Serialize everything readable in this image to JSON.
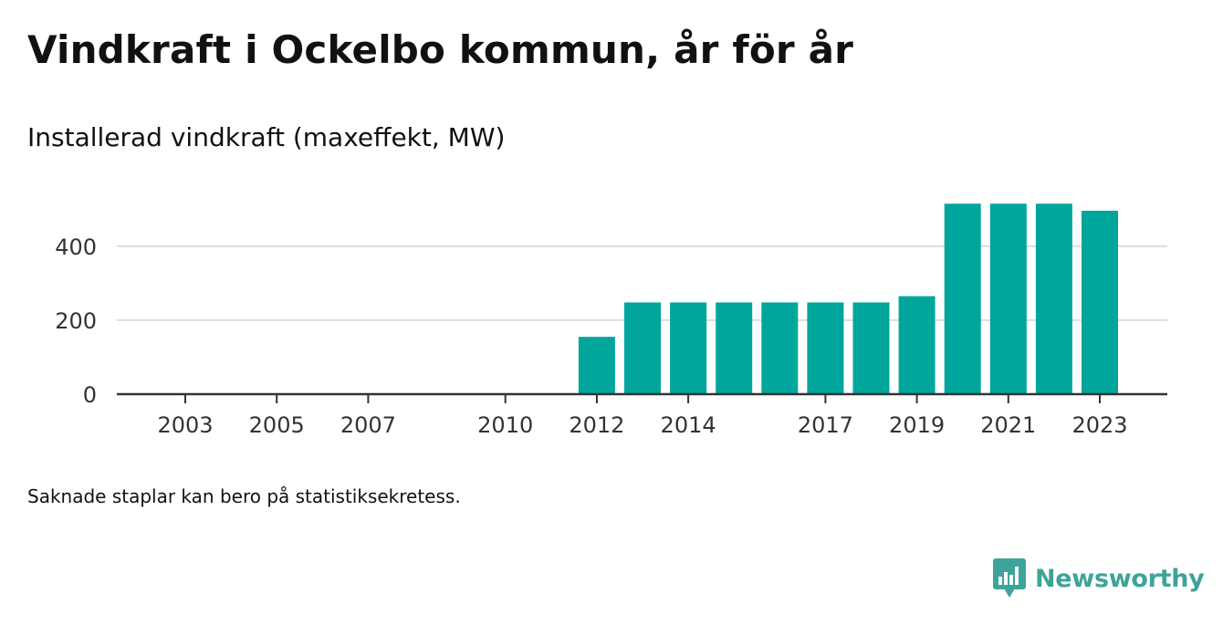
{
  "header": {
    "title": "Vindkraft i Ockelbo kommun, år för år",
    "subtitle": "Installerad vindkraft (maxeffekt, MW)"
  },
  "footnote": "Saknade staplar kan bero på statistiksekretess.",
  "brand": {
    "name": "Newsworthy",
    "logo_icon": "newsworthy-chart-bubble-icon",
    "color": "#3ea39b"
  },
  "chart_data": {
    "type": "bar",
    "categories": [
      2003,
      2004,
      2005,
      2006,
      2007,
      2008,
      2009,
      2010,
      2011,
      2012,
      2013,
      2014,
      2015,
      2016,
      2017,
      2018,
      2019,
      2020,
      2021,
      2022,
      2023
    ],
    "values": [
      0,
      null,
      0,
      null,
      0,
      null,
      null,
      0,
      0,
      155,
      248,
      248,
      248,
      248,
      248,
      248,
      265,
      515,
      515,
      515,
      496
    ],
    "x_tick_labels": [
      "2003",
      "2005",
      "2007",
      "2010",
      "2012",
      "2014",
      "2017",
      "2019",
      "2021",
      "2023"
    ],
    "y_ticks": [
      0,
      200,
      400
    ],
    "ylim": [
      0,
      560
    ],
    "grid": true,
    "bar_color": "#00a69c",
    "xlabel": "",
    "ylabel": ""
  }
}
